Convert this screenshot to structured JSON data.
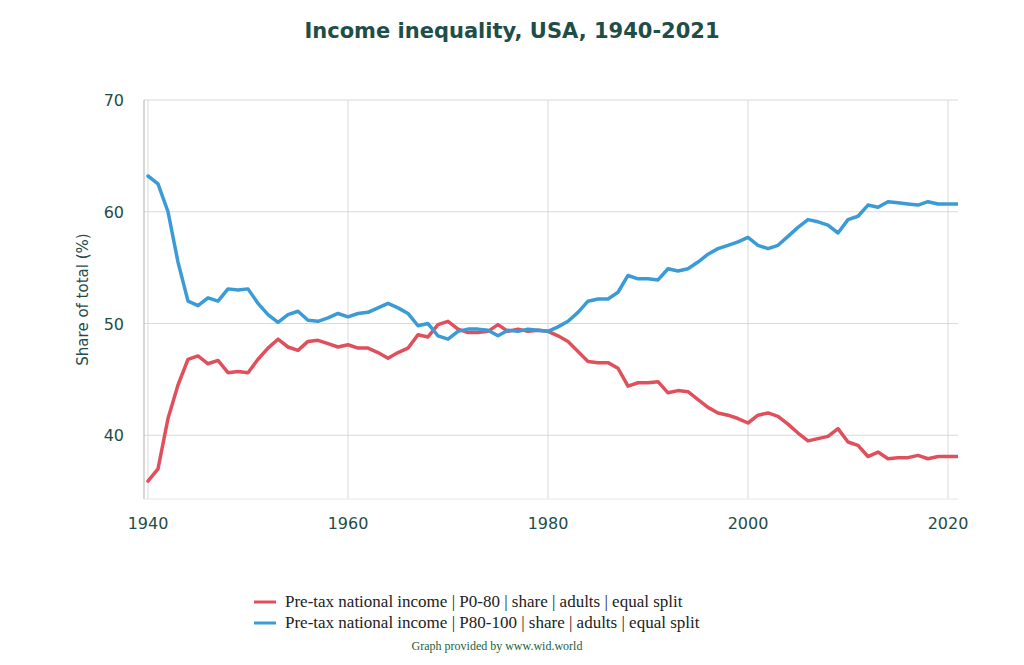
{
  "chart_data": {
    "type": "line",
    "title": "Income inequality, USA, 1940-2021",
    "y_label": "Share of total (%)",
    "source": "Graph provided by www.wid.world",
    "x": [
      1940,
      1941,
      1942,
      1943,
      1944,
      1945,
      1946,
      1947,
      1948,
      1949,
      1950,
      1951,
      1952,
      1953,
      1954,
      1955,
      1956,
      1957,
      1958,
      1959,
      1960,
      1961,
      1962,
      1963,
      1964,
      1965,
      1966,
      1967,
      1968,
      1969,
      1970,
      1971,
      1972,
      1973,
      1974,
      1975,
      1976,
      1977,
      1978,
      1979,
      1980,
      1981,
      1982,
      1983,
      1984,
      1985,
      1986,
      1987,
      1988,
      1989,
      1990,
      1991,
      1992,
      1993,
      1994,
      1995,
      1996,
      1997,
      1998,
      1999,
      2000,
      2001,
      2002,
      2003,
      2004,
      2005,
      2006,
      2007,
      2008,
      2009,
      2010,
      2011,
      2012,
      2013,
      2014,
      2015,
      2016,
      2017,
      2018,
      2019,
      2020,
      2021
    ],
    "series": [
      {
        "name": "Pre-tax national income | P0-80 | share | adults | equal split",
        "color": "#e0505c",
        "values": [
          35.9,
          37,
          41.5,
          44.5,
          46.8,
          47.1,
          46.4,
          46.7,
          45.6,
          45.7,
          45.6,
          46.8,
          47.8,
          48.6,
          47.9,
          47.6,
          48.4,
          48.5,
          48.2,
          47.9,
          48.1,
          47.8,
          47.8,
          47.4,
          46.9,
          47.4,
          47.8,
          49,
          48.8,
          49.9,
          50.2,
          49.5,
          49.2,
          49.2,
          49.3,
          49.9,
          49.3,
          49.5,
          49.3,
          49.4,
          49.3,
          48.9,
          48.4,
          47.5,
          46.6,
          46.5,
          46.5,
          46,
          44.4,
          44.7,
          44.7,
          44.8,
          43.8,
          44,
          43.9,
          43.2,
          42.5,
          42,
          41.8,
          41.5,
          41.1,
          41.8,
          42,
          41.7,
          41,
          40.2,
          39.5,
          39.7,
          39.9,
          40.6,
          39.4,
          39.1,
          38.1,
          38.5,
          37.9,
          38,
          38,
          38.2,
          37.9,
          38.1,
          38.1,
          38.1
        ]
      },
      {
        "name": "Pre-tax national income | P80-100 | share | adults | equal split",
        "color": "#3b9bd6",
        "values": [
          63.2,
          62.5,
          60,
          55.5,
          52,
          51.6,
          52.3,
          52,
          53.1,
          53,
          53.1,
          51.8,
          50.8,
          50.1,
          50.8,
          51.1,
          50.3,
          50.2,
          50.5,
          50.9,
          50.6,
          50.9,
          51,
          51.4,
          51.8,
          51.4,
          50.9,
          49.8,
          50,
          48.9,
          48.6,
          49.3,
          49.5,
          49.5,
          49.4,
          48.9,
          49.4,
          49.3,
          49.5,
          49.4,
          49.3,
          49.7,
          50.2,
          51,
          52,
          52.2,
          52.2,
          52.8,
          54.3,
          54,
          54,
          53.9,
          54.9,
          54.7,
          54.9,
          55.5,
          56.2,
          56.7,
          57,
          57.3,
          57.7,
          57,
          56.7,
          57,
          57.8,
          58.6,
          59.3,
          59.1,
          58.8,
          58.1,
          59.3,
          59.6,
          60.6,
          60.4,
          60.9,
          60.8,
          60.7,
          60.6,
          60.9,
          60.7,
          60.7,
          60.7
        ]
      }
    ],
    "xlim": [
      1939.6,
      2021
    ],
    "xticks": [
      1940,
      1960,
      1980,
      2000,
      2020
    ],
    "ylim": [
      34.3,
      70
    ],
    "yticks": [
      40,
      50,
      60,
      70
    ],
    "grid": true,
    "legend": "bottom"
  }
}
